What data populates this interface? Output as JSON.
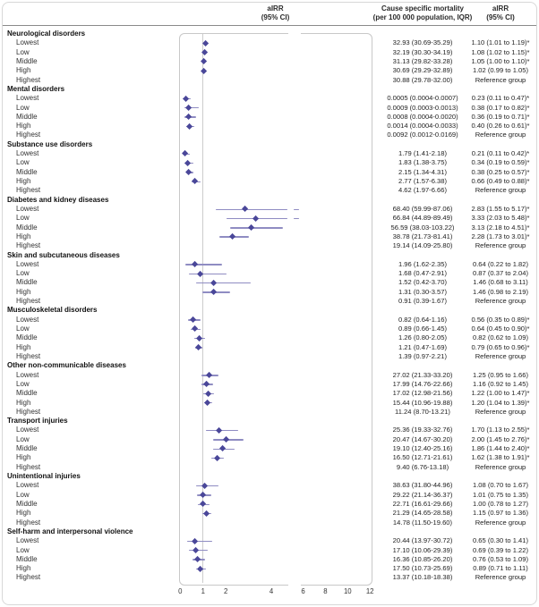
{
  "figure": {
    "header": {
      "plot_col_line1": "aIRR",
      "plot_col_line2": "(95% CI)",
      "mortality_col_line1": "Cause specific mortality",
      "mortality_col_line2": "(per 100 000 population, IQR)",
      "airr_col_line1": "aIRR",
      "airr_col_line2": "(95% CI)"
    },
    "colors": {
      "diamond": "#4a4799",
      "ci_line": "#8f8cc2",
      "reference_line": "#cccccc",
      "panel_border": "#c8c8c8",
      "outer_border": "#d8d8d8",
      "separator": "#8a8a8a"
    }
  },
  "chart_data": {
    "type": "scatter",
    "subtype": "forest-plot",
    "title": "aIRR (95% CI) by cause and quintile",
    "xlabel": "aIRR",
    "x_ticks": [
      0,
      1,
      2,
      4,
      6,
      8,
      10,
      12
    ],
    "x_axis_break": [
      4.78,
      6
    ],
    "xlim": [
      0,
      12
    ],
    "reference_value": 1,
    "reference_label": "Reference group",
    "quintile_labels": [
      "Lowest",
      "Low",
      "Middle",
      "High",
      "Highest"
    ],
    "sections": [
      {
        "name": "Neurological disorders",
        "rows": [
          {
            "label": "Lowest",
            "mortality": "32.93 (30.69-35.29)",
            "airr": "1.10 (1.01 to 1.19)*",
            "est": 1.1,
            "lo": 1.01,
            "hi": 1.19
          },
          {
            "label": "Low",
            "mortality": "32.19 (30.30-34.19)",
            "airr": "1.08 (1.02 to 1.15)*",
            "est": 1.08,
            "lo": 1.02,
            "hi": 1.15
          },
          {
            "label": "Middle",
            "mortality": "31.13 (29.82-33.28)",
            "airr": "1.05 (1.00 to 1.10)*",
            "est": 1.05,
            "lo": 1.0,
            "hi": 1.1
          },
          {
            "label": "High",
            "mortality": "30.69 (29.29-32.89)",
            "airr": "1.02 (0.99 to 1.05)",
            "est": 1.02,
            "lo": 0.99,
            "hi": 1.05
          },
          {
            "label": "Highest",
            "mortality": "30.88 (29.78-32.00)",
            "airr": "Reference group",
            "est": null,
            "lo": null,
            "hi": null
          }
        ]
      },
      {
        "name": "Mental disorders",
        "rows": [
          {
            "label": "Lowest",
            "mortality": "0.0005 (0.0004-0.0007)",
            "airr": "0.23 (0.11 to 0.47)*",
            "est": 0.23,
            "lo": 0.11,
            "hi": 0.47
          },
          {
            "label": "Low",
            "mortality": "0.0009 (0.0003-0.0013)",
            "airr": "0.38 (0.17 to 0.82)*",
            "est": 0.38,
            "lo": 0.17,
            "hi": 0.82
          },
          {
            "label": "Middle",
            "mortality": "0.0008 (0.0004-0.0020)",
            "airr": "0.36 (0.19 to 0.71)*",
            "est": 0.36,
            "lo": 0.19,
            "hi": 0.71
          },
          {
            "label": "High",
            "mortality": "0.0014 (0.0004-0.0033)",
            "airr": "0.40 (0.26 to 0.61)*",
            "est": 0.4,
            "lo": 0.26,
            "hi": 0.61
          },
          {
            "label": "Highest",
            "mortality": "0.0092 (0.0012-0.0169)",
            "airr": "Reference group",
            "est": null,
            "lo": null,
            "hi": null
          }
        ]
      },
      {
        "name": "Substance use disorders",
        "rows": [
          {
            "label": "Lowest",
            "mortality": "1.79 (1.41-2.18)",
            "airr": "0.21 (0.11 to 0.42)*",
            "est": 0.21,
            "lo": 0.11,
            "hi": 0.42
          },
          {
            "label": "Low",
            "mortality": "1.83 (1.38-3.75)",
            "airr": "0.34 (0.19 to 0.59)*",
            "est": 0.34,
            "lo": 0.19,
            "hi": 0.59
          },
          {
            "label": "Middle",
            "mortality": "2.15 (1.34-4.31)",
            "airr": "0.38 (0.25 to 0.57)*",
            "est": 0.38,
            "lo": 0.25,
            "hi": 0.57
          },
          {
            "label": "High",
            "mortality": "2.77 (1.57-6.38)",
            "airr": "0.66 (0.49 to 0.88)*",
            "est": 0.66,
            "lo": 0.49,
            "hi": 0.88
          },
          {
            "label": "Highest",
            "mortality": "4.62 (1.97-6.66)",
            "airr": "Reference group",
            "est": null,
            "lo": null,
            "hi": null
          }
        ]
      },
      {
        "name": "Diabetes and kidney diseases",
        "rows": [
          {
            "label": "Lowest",
            "mortality": "68.40 (59.99-87.06)",
            "airr": "2.83 (1.55 to 5.17)*",
            "est": 2.83,
            "lo": 1.55,
            "hi": 5.17
          },
          {
            "label": "Low",
            "mortality": "66.84 (44.89-89.49)",
            "airr": "3.33 (2.03 to 5.48)*",
            "est": 3.33,
            "lo": 2.03,
            "hi": 5.48
          },
          {
            "label": "Middle",
            "mortality": "56.59 (38.03-103.22)",
            "airr": "3.13 (2.18 to 4.51)*",
            "est": 3.13,
            "lo": 2.18,
            "hi": 4.51
          },
          {
            "label": "High",
            "mortality": "38.78 (21.73-81.41)",
            "airr": "2.28 (1.73 to 3.01)*",
            "est": 2.28,
            "lo": 1.73,
            "hi": 3.01
          },
          {
            "label": "Highest",
            "mortality": "19.14 (14.09-25.80)",
            "airr": "Reference group",
            "est": null,
            "lo": null,
            "hi": null
          }
        ]
      },
      {
        "name": "Skin and subcutaneous diseases",
        "rows": [
          {
            "label": "Lowest",
            "mortality": "1.96 (1.62-2.35)",
            "airr": "0.64 (0.22 to 1.82)",
            "est": 0.64,
            "lo": 0.22,
            "hi": 1.82
          },
          {
            "label": "Low",
            "mortality": "1.68 (0.47-2.91)",
            "airr": "0.87 (0.37 to 2.04)",
            "est": 0.87,
            "lo": 0.37,
            "hi": 2.04
          },
          {
            "label": "Middle",
            "mortality": "1.52 (0.42-3.70)",
            "airr": "1.46 (0.68 to 3.11)",
            "est": 1.46,
            "lo": 0.68,
            "hi": 3.11
          },
          {
            "label": "High",
            "mortality": "1.31 (0.30-3.57)",
            "airr": "1.46 (0.98 to 2.19)",
            "est": 1.46,
            "lo": 0.98,
            "hi": 2.19
          },
          {
            "label": "Highest",
            "mortality": "0.91 (0.39-1.67)",
            "airr": "Reference group",
            "est": null,
            "lo": null,
            "hi": null
          }
        ]
      },
      {
        "name": "Musculoskeletal disorders",
        "rows": [
          {
            "label": "Lowest",
            "mortality": "0.82 (0.64-1.16)",
            "airr": "0.56 (0.35 to 0.89)*",
            "est": 0.56,
            "lo": 0.35,
            "hi": 0.89
          },
          {
            "label": "Low",
            "mortality": "0.89 (0.66-1.45)",
            "airr": "0.64 (0.45 to 0.90)*",
            "est": 0.64,
            "lo": 0.45,
            "hi": 0.9
          },
          {
            "label": "Middle",
            "mortality": "1.26 (0.80-2.05)",
            "airr": "0.82 (0.62 to 1.09)",
            "est": 0.82,
            "lo": 0.62,
            "hi": 1.09
          },
          {
            "label": "High",
            "mortality": "1.21 (0.47-1.69)",
            "airr": "0.79 (0.65 to 0.96)*",
            "est": 0.79,
            "lo": 0.65,
            "hi": 0.96
          },
          {
            "label": "Highest",
            "mortality": "1.39 (0.97-2.21)",
            "airr": "Reference group",
            "est": null,
            "lo": null,
            "hi": null
          }
        ]
      },
      {
        "name": "Other non-communicable diseases",
        "rows": [
          {
            "label": "Lowest",
            "mortality": "27.02 (21.33-33.20)",
            "airr": "1.25 (0.95 to 1.66)",
            "est": 1.25,
            "lo": 0.95,
            "hi": 1.66
          },
          {
            "label": "Low",
            "mortality": "17.99 (14.76-22.66)",
            "airr": "1.16 (0.92 to 1.45)",
            "est": 1.16,
            "lo": 0.92,
            "hi": 1.45
          },
          {
            "label": "Middle",
            "mortality": "17.02 (12.98-21.56)",
            "airr": "1.22 (1.00 to 1.47)*",
            "est": 1.22,
            "lo": 1.0,
            "hi": 1.47
          },
          {
            "label": "High",
            "mortality": "15.44 (10.96-19.88)",
            "airr": "1.20 (1.04 to 1.39)*",
            "est": 1.2,
            "lo": 1.04,
            "hi": 1.39
          },
          {
            "label": "Highest",
            "mortality": "11.24 (8.70-13.21)",
            "airr": "Reference group",
            "est": null,
            "lo": null,
            "hi": null
          }
        ]
      },
      {
        "name": "Transport injuries",
        "rows": [
          {
            "label": "Lowest",
            "mortality": "25.36 (19.33-32.76)",
            "airr": "1.70 (1.13 to 2.55)*",
            "est": 1.7,
            "lo": 1.13,
            "hi": 2.55
          },
          {
            "label": "Low",
            "mortality": "20.47 (14.67-30.20)",
            "airr": "2.00 (1.45 to 2.76)*",
            "est": 2.0,
            "lo": 1.45,
            "hi": 2.76
          },
          {
            "label": "Middle",
            "mortality": "19.10 (12.40-25.16)",
            "airr": "1.86 (1.44 to 2.40)*",
            "est": 1.86,
            "lo": 1.44,
            "hi": 2.4
          },
          {
            "label": "High",
            "mortality": "16.50 (12.71-21.61)",
            "airr": "1.62 (1.38 to 1.91)*",
            "est": 1.62,
            "lo": 1.38,
            "hi": 1.91
          },
          {
            "label": "Highest",
            "mortality": "9.40 (6.76-13.18)",
            "airr": "Reference group",
            "est": null,
            "lo": null,
            "hi": null
          }
        ]
      },
      {
        "name": "Unintentional injuries",
        "rows": [
          {
            "label": "Lowest",
            "mortality": "38.63 (31.80-44.96)",
            "airr": "1.08 (0.70 to 1.67)",
            "est": 1.08,
            "lo": 0.7,
            "hi": 1.67
          },
          {
            "label": "Low",
            "mortality": "29.22 (21.14-36.37)",
            "airr": "1.01 (0.75 to 1.35)",
            "est": 1.01,
            "lo": 0.75,
            "hi": 1.35
          },
          {
            "label": "Middle",
            "mortality": "22.71 (16.61-29.66)",
            "airr": "1.00 (0.78 to 1.27)",
            "est": 1.0,
            "lo": 0.78,
            "hi": 1.27
          },
          {
            "label": "High",
            "mortality": "21.29 (14.65-28.58)",
            "airr": "1.15 (0.97 to 1.36)",
            "est": 1.15,
            "lo": 0.97,
            "hi": 1.36
          },
          {
            "label": "Highest",
            "mortality": "14.78 (11.50-19.60)",
            "airr": "Reference group",
            "est": null,
            "lo": null,
            "hi": null
          }
        ]
      },
      {
        "name": "Self-harm and interpersonal violence",
        "rows": [
          {
            "label": "Lowest",
            "mortality": "20.44 (13.97-30.72)",
            "airr": "0.65 (0.30 to 1.41)",
            "est": 0.65,
            "lo": 0.3,
            "hi": 1.41
          },
          {
            "label": "Low",
            "mortality": "17.10 (10.06-29.39)",
            "airr": "0.69 (0.39 to 1.22)",
            "est": 0.69,
            "lo": 0.39,
            "hi": 1.22
          },
          {
            "label": "Middle",
            "mortality": "16.36 (10.85-26.20)",
            "airr": "0.76 (0.53 to 1.09)",
            "est": 0.76,
            "lo": 0.53,
            "hi": 1.09
          },
          {
            "label": "High",
            "mortality": "17.50 (10.73-25.69)",
            "airr": "0.89 (0.71 to 1.11)",
            "est": 0.89,
            "lo": 0.71,
            "hi": 1.11
          },
          {
            "label": "Highest",
            "mortality": "13.37 (10.18-18.38)",
            "airr": "Reference group",
            "est": null,
            "lo": null,
            "hi": null
          }
        ]
      }
    ]
  }
}
